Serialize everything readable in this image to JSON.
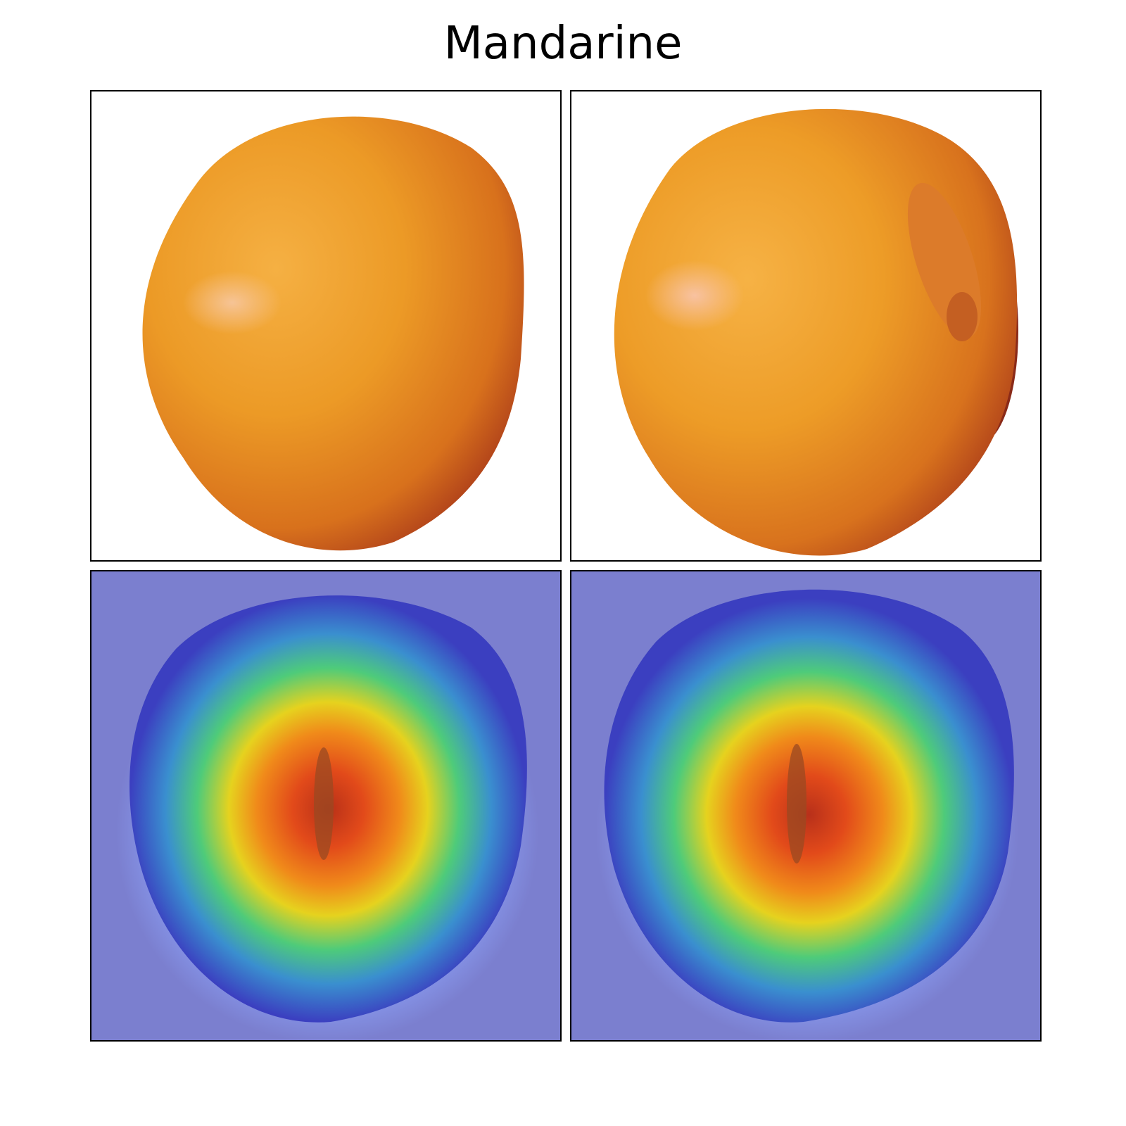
{
  "title": "Mandarine",
  "panels": [
    {
      "row": 1,
      "col": 1,
      "kind": "photo",
      "subject": "mandarine-fruit"
    },
    {
      "row": 1,
      "col": 2,
      "kind": "photo",
      "subject": "mandarine-fruit-with-leaf"
    },
    {
      "row": 2,
      "col": 1,
      "kind": "heatmap-overlay",
      "colormap": "jet"
    },
    {
      "row": 2,
      "col": 2,
      "kind": "heatmap-overlay",
      "colormap": "jet"
    }
  ],
  "colors": {
    "frame": "#000000",
    "fruit_light": "#f2a52a",
    "fruit_dark": "#b8401a",
    "overlay_background": "#7b7fcf"
  }
}
